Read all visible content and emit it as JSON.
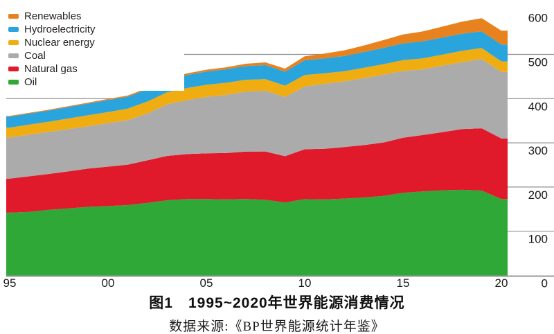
{
  "legend": {
    "items": [
      {
        "key": "renewables",
        "label": "Renewables",
        "color": "#E8821F"
      },
      {
        "key": "hydroelectricity",
        "label": "Hydroelectricity",
        "color": "#2AA4DC"
      },
      {
        "key": "nuclear-energy",
        "label": "Nuclear energy",
        "color": "#F0AD12"
      },
      {
        "key": "coal",
        "label": "Coal",
        "color": "#ACABAB"
      },
      {
        "key": "natural-gas",
        "label": "Natural gas",
        "color": "#E01A2B"
      },
      {
        "key": "oil",
        "label": "Oil",
        "color": "#2FA838"
      }
    ]
  },
  "chart_data": {
    "type": "area",
    "stacked": true,
    "x": [
      1995,
      1996,
      1997,
      1998,
      1999,
      2000,
      2001,
      2002,
      2003,
      2004,
      2005,
      2006,
      2007,
      2008,
      2009,
      2010,
      2011,
      2012,
      2013,
      2014,
      2015,
      2016,
      2017,
      2018,
      2019,
      2020
    ],
    "series": [
      {
        "key": "oil",
        "name": "Oil",
        "color": "#2FA838",
        "values": [
          142,
          143.9,
          148.5,
          151.5,
          155.2,
          156.9,
          159.1,
          164.1,
          170.1,
          172.7,
          172.8,
          172.1,
          173,
          171,
          165,
          172.5,
          172.1,
          173.8,
          176.4,
          180,
          186.8,
          189.9,
          192.7,
          193.7,
          192,
          172.8
        ]
      },
      {
        "key": "natural-gas",
        "name": "Natural gas",
        "color": "#E01A2B",
        "values": [
          77,
          80.4,
          81.1,
          84,
          86.6,
          89.2,
          91.6,
          96.2,
          100.3,
          101.8,
          103.4,
          104.7,
          107.3,
          109.4,
          104.8,
          113,
          114.3,
          116.5,
          118.4,
          120.5,
          124.8,
          127.6,
          131.5,
          137.5,
          140.9,
          136.9
        ]
      },
      {
        "key": "coal",
        "name": "Coal",
        "color": "#ACABAB",
        "values": [
          93.1,
          94.2,
          95.1,
          95.6,
          95.7,
          98.3,
          100.5,
          106.1,
          116.7,
          121.9,
          127.6,
          131.5,
          135.7,
          137.4,
          134,
          141.8,
          147,
          148.5,
          151.7,
          153.6,
          151,
          148.7,
          150.3,
          151.3,
          156.8,
          150.6
        ]
      },
      {
        "key": "nuclear-energy",
        "name": "Nuclear energy",
        "color": "#F0AD12",
        "values": [
          22.3,
          22.9,
          23.1,
          24,
          24.9,
          25.2,
          26.2,
          27,
          27.1,
          27.5,
          27.4,
          27.4,
          26.7,
          26.3,
          25.5,
          26.2,
          24,
          22.9,
          23.1,
          23.8,
          24.6,
          24.9,
          25,
          25.5,
          24.8,
          23.9
        ]
      },
      {
        "key": "hydroelectricity",
        "name": "Hydroelectricity",
        "color": "#2AA4DC",
        "values": [
          24.8,
          24.8,
          25.4,
          26,
          26.4,
          27.1,
          26.8,
          27.6,
          28.3,
          29.2,
          29.9,
          30.6,
          30.9,
          31.8,
          31.7,
          33.3,
          33.5,
          34.6,
          35.7,
          36.9,
          37.7,
          38.5,
          38.6,
          38.8,
          37.5,
          38
        ]
      },
      {
        "key": "renewables",
        "name": "Renewables",
        "color": "#E8821F",
        "values": [
          1.7,
          1.8,
          1.9,
          2,
          2.3,
          2.5,
          2.7,
          3.1,
          3.4,
          3.8,
          4.2,
          4.6,
          5.3,
          6.1,
          6.9,
          9,
          10.9,
          12.8,
          14.8,
          17.5,
          20.3,
          22.3,
          24.8,
          27.2,
          29.9,
          31.5
        ]
      }
    ],
    "ylim": [
      0,
      600
    ],
    "yticks": [
      600,
      500,
      400,
      300,
      200,
      100,
      0
    ],
    "xtick_labels": [
      "95",
      "00",
      "05",
      "10",
      "15",
      "20"
    ],
    "xtick_years": [
      1995,
      2000,
      2005,
      2010,
      2015,
      2020
    ],
    "y_axis_side": "right",
    "grid": "horizontal",
    "legend_position": "top-left",
    "title": "图1　1995~2020年世界能源消费情况",
    "xlabel": "",
    "ylabel": ""
  },
  "caption": {
    "title": "图1　1995~2020年世界能源消费情况",
    "source": "数据来源:《BP世界能源统计年鉴》"
  },
  "style_colors": {
    "gridline": "#8F8F8F",
    "axis_line": "#9A9A9A",
    "tick_text": "#1B1B1B"
  }
}
